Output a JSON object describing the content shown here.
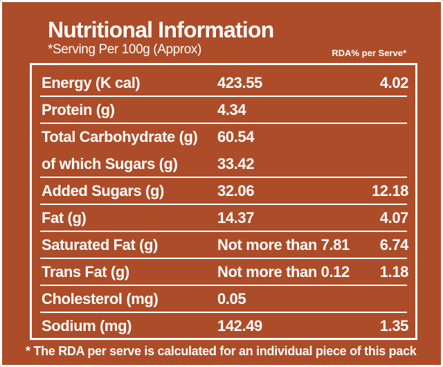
{
  "header": {
    "title": "Nutritional Information",
    "subtitle": "*Serving Per 100g (Approx)",
    "rda_column": "RDA% per Serve*"
  },
  "rows": [
    {
      "label": "Energy (K cal)",
      "value": "423.55",
      "rda": "4.02"
    },
    {
      "label": "Protein (g)",
      "value": "4.34",
      "rda": ""
    },
    {
      "label": "Total Carbohydrate (g)",
      "value": "60.54",
      "rda": ""
    },
    {
      "label": "of which Sugars (g)",
      "value": "33.42",
      "rda": ""
    },
    {
      "label": "Added Sugars (g)",
      "value": "32.06",
      "rda": "12.18"
    },
    {
      "label": "Fat (g)",
      "value": "14.37",
      "rda": "4.07"
    },
    {
      "label": "Saturated Fat (g)",
      "value": "Not more than 7.81",
      "rda": "6.74"
    },
    {
      "label": "Trans Fat (g)",
      "value": "Not more than 0.12",
      "rda": "1.18"
    },
    {
      "label": "Cholesterol (mg)",
      "value": "0.05",
      "rda": ""
    },
    {
      "label": "Sodium (mg)",
      "value": "142.49",
      "rda": "1.35"
    }
  ],
  "footnote": "* The RDA per serve is calculated for an individual piece of this pack",
  "colors": {
    "background": "#ad4c28",
    "text": "#ffffff"
  }
}
